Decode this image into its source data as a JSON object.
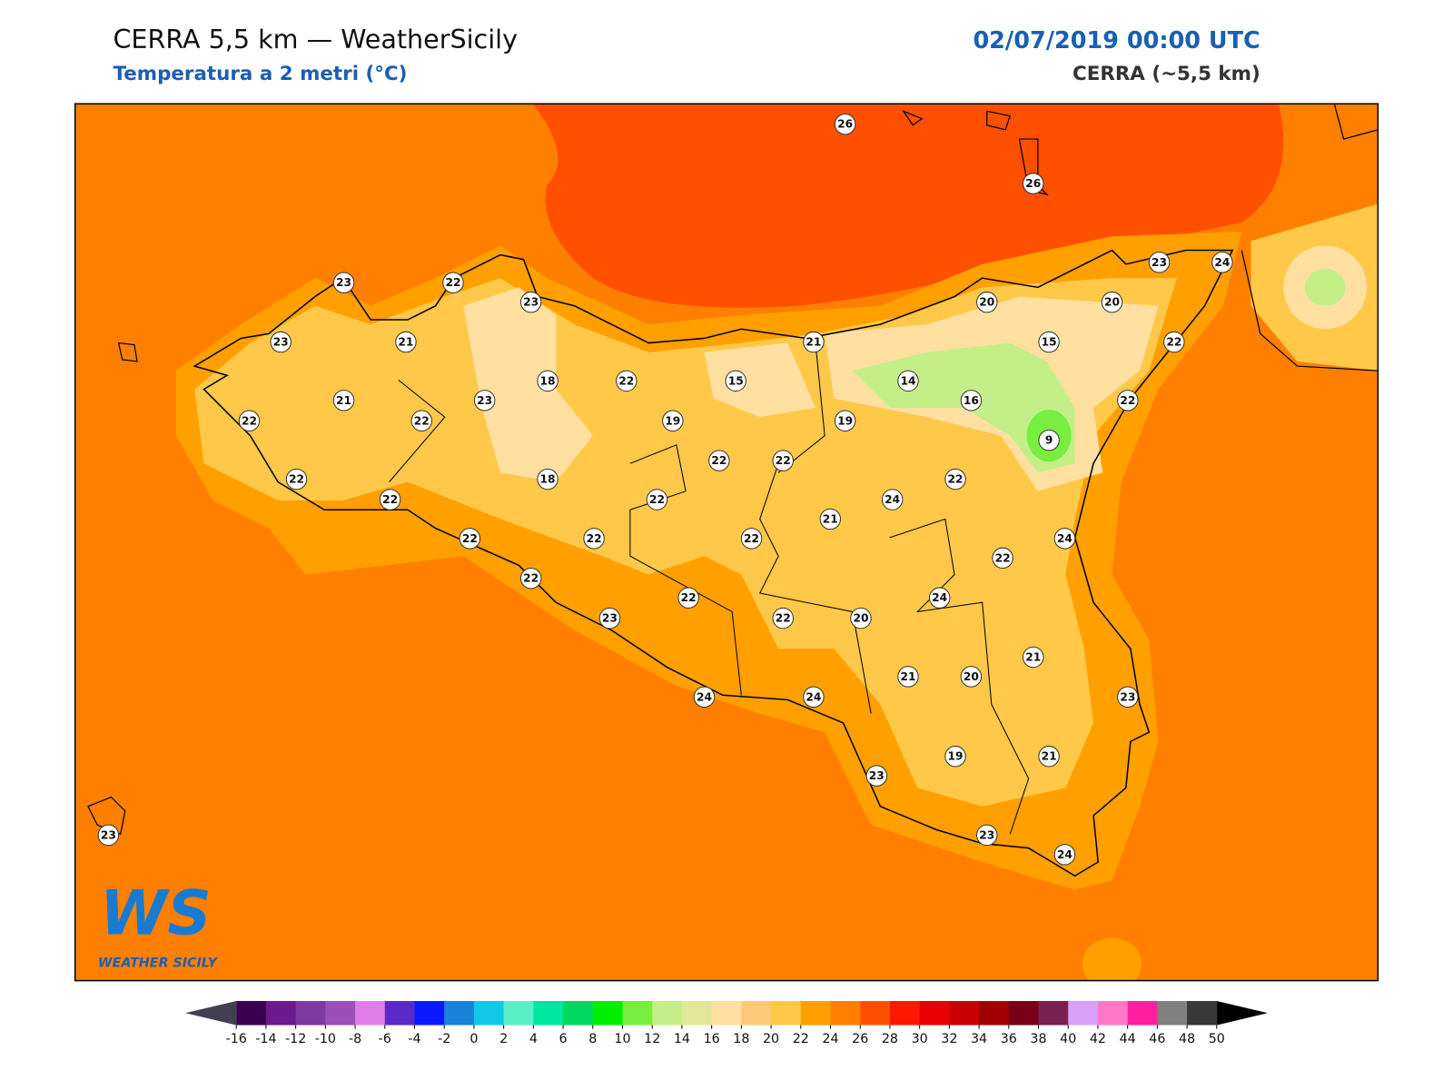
{
  "header": {
    "title": "CERRA 5,5 km — WeatherSicily",
    "subtitle": "Temperatura a 2 metri (°C)",
    "date": "02/07/2019 00:00 UTC",
    "model": "CERRA (~5,5 km)"
  },
  "map": {
    "stations": [
      26,
      26,
      23,
      22,
      23,
      23,
      24,
      23,
      21,
      21,
      20,
      20,
      15,
      22,
      21,
      22,
      22,
      23,
      18,
      22,
      15,
      14,
      16,
      22,
      19,
      19,
      9,
      22,
      22,
      18,
      22,
      22,
      22,
      24,
      22,
      21,
      22,
      22,
      22,
      24,
      22,
      22,
      22,
      24,
      23,
      22,
      20,
      21,
      21,
      20,
      24,
      24,
      23,
      23,
      19,
      21,
      23,
      24,
      23
    ]
  },
  "colorbar": {
    "ticks": [
      -16,
      -14,
      -12,
      -10,
      -8,
      -6,
      -4,
      -2,
      0,
      2,
      4,
      6,
      8,
      10,
      12,
      14,
      16,
      18,
      20,
      22,
      24,
      26,
      28,
      30,
      32,
      34,
      36,
      38,
      40,
      42,
      44,
      46,
      48,
      50
    ],
    "colors": [
      "#3b0050",
      "#6a1a8a",
      "#7d3aa0",
      "#9b4fb8",
      "#e07de8",
      "#5a2ac8",
      "#0a1aff",
      "#1a82d8",
      "#10c8e8",
      "#5aeec8",
      "#00e8a0",
      "#00d860",
      "#00ee00",
      "#78ee40",
      "#c4ee88",
      "#e0e898",
      "#ffe0a0",
      "#ffc878",
      "#ffc848",
      "#ffa000",
      "#ff8000",
      "#ff5000",
      "#ff1800",
      "#e80000",
      "#c80000",
      "#a00000",
      "#780018",
      "#7a2050",
      "#d8a0f8",
      "#ff78c8",
      "#ff20a0",
      "#808080",
      "#383838"
    ],
    "extend_colors": [
      "#404050",
      "#000000"
    ]
  },
  "logo": {
    "mark": "WS",
    "name": "WEATHER SICILY"
  }
}
